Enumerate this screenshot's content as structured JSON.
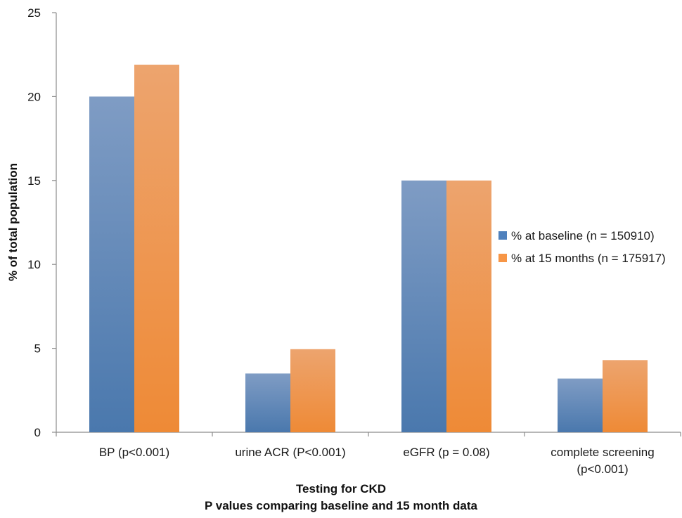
{
  "chart_data": {
    "type": "bar",
    "categories": [
      [
        "BP (p<0.001)"
      ],
      [
        "urine ACR (P<0.001)"
      ],
      [
        "eGFR (p = 0.08)"
      ],
      [
        "complete screening",
        "(p<0.001)"
      ]
    ],
    "series": [
      {
        "name": "% at baseline (n = 150910)",
        "values": [
          20.0,
          3.5,
          15.0,
          3.2
        ],
        "color": "#4f81bd"
      },
      {
        "name": "% at 15 months (n = 175917)",
        "values": [
          21.9,
          4.95,
          15.0,
          4.3
        ],
        "color": "#f79646"
      }
    ],
    "xlabel": [
      "Testing for CKD",
      "P values comparing baseline and 15 month data"
    ],
    "ylabel": "% of total population",
    "ylim": [
      0,
      25
    ],
    "yticks": [
      0,
      5,
      10,
      15,
      20,
      25
    ],
    "grid": false,
    "legend_position": "right"
  }
}
